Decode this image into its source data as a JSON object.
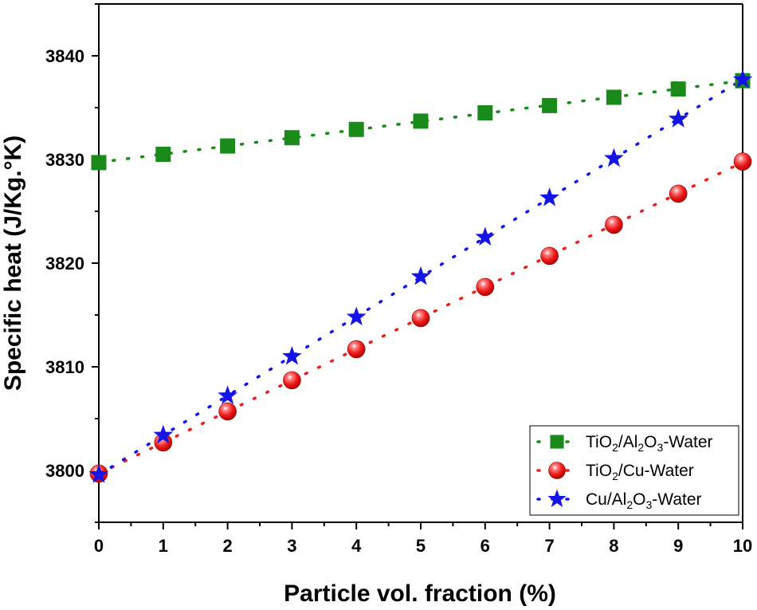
{
  "chart_data": {
    "type": "scatter",
    "title": "",
    "xlabel": "Particle vol. fraction (%)",
    "ylabel": "Specific heat (J/Kg.°K)",
    "xlim": [
      0,
      10
    ],
    "ylim": [
      3795,
      3845
    ],
    "x_ticks": [
      0,
      1,
      2,
      3,
      4,
      5,
      6,
      7,
      8,
      9,
      10
    ],
    "y_ticks": [
      3800,
      3810,
      3820,
      3830,
      3840
    ],
    "legend_position": "bottom-right",
    "grid": false,
    "x": [
      0,
      1,
      2,
      3,
      4,
      5,
      6,
      7,
      8,
      9,
      10
    ],
    "series": [
      {
        "name": "TiO2/Al2O3-Water",
        "legend_label": [
          {
            "text": "TiO",
            "sub": false
          },
          {
            "text": "2",
            "sub": true
          },
          {
            "text": "/Al",
            "sub": false
          },
          {
            "text": "2",
            "sub": true
          },
          {
            "text": "O",
            "sub": false
          },
          {
            "text": "3",
            "sub": true
          },
          {
            "text": "-Water",
            "sub": false
          }
        ],
        "marker": "square",
        "color": "#1a8a1a",
        "values": [
          3829.7,
          3830.5,
          3831.3,
          3832.1,
          3832.9,
          3833.7,
          3834.5,
          3835.2,
          3836.0,
          3836.8,
          3837.6
        ]
      },
      {
        "name": "TiO2/Cu-Water",
        "legend_label": [
          {
            "text": "TiO",
            "sub": false
          },
          {
            "text": "2",
            "sub": true
          },
          {
            "text": "/Cu-Water",
            "sub": false
          }
        ],
        "marker": "sphere",
        "color": "#e8211e",
        "values": [
          3799.7,
          3802.7,
          3805.7,
          3808.7,
          3811.7,
          3814.7,
          3817.7,
          3820.7,
          3823.7,
          3826.7,
          3829.8
        ]
      },
      {
        "name": "Cu/Al2O3-Water",
        "legend_label": [
          {
            "text": "Cu/Al",
            "sub": false
          },
          {
            "text": "2",
            "sub": true
          },
          {
            "text": "O",
            "sub": false
          },
          {
            "text": "3",
            "sub": true
          },
          {
            "text": "-Water",
            "sub": false
          }
        ],
        "marker": "star",
        "color": "#1414e6",
        "values": [
          3799.6,
          3803.4,
          3807.2,
          3811.0,
          3814.8,
          3818.7,
          3822.5,
          3826.3,
          3830.1,
          3833.9,
          3837.7
        ]
      }
    ]
  }
}
